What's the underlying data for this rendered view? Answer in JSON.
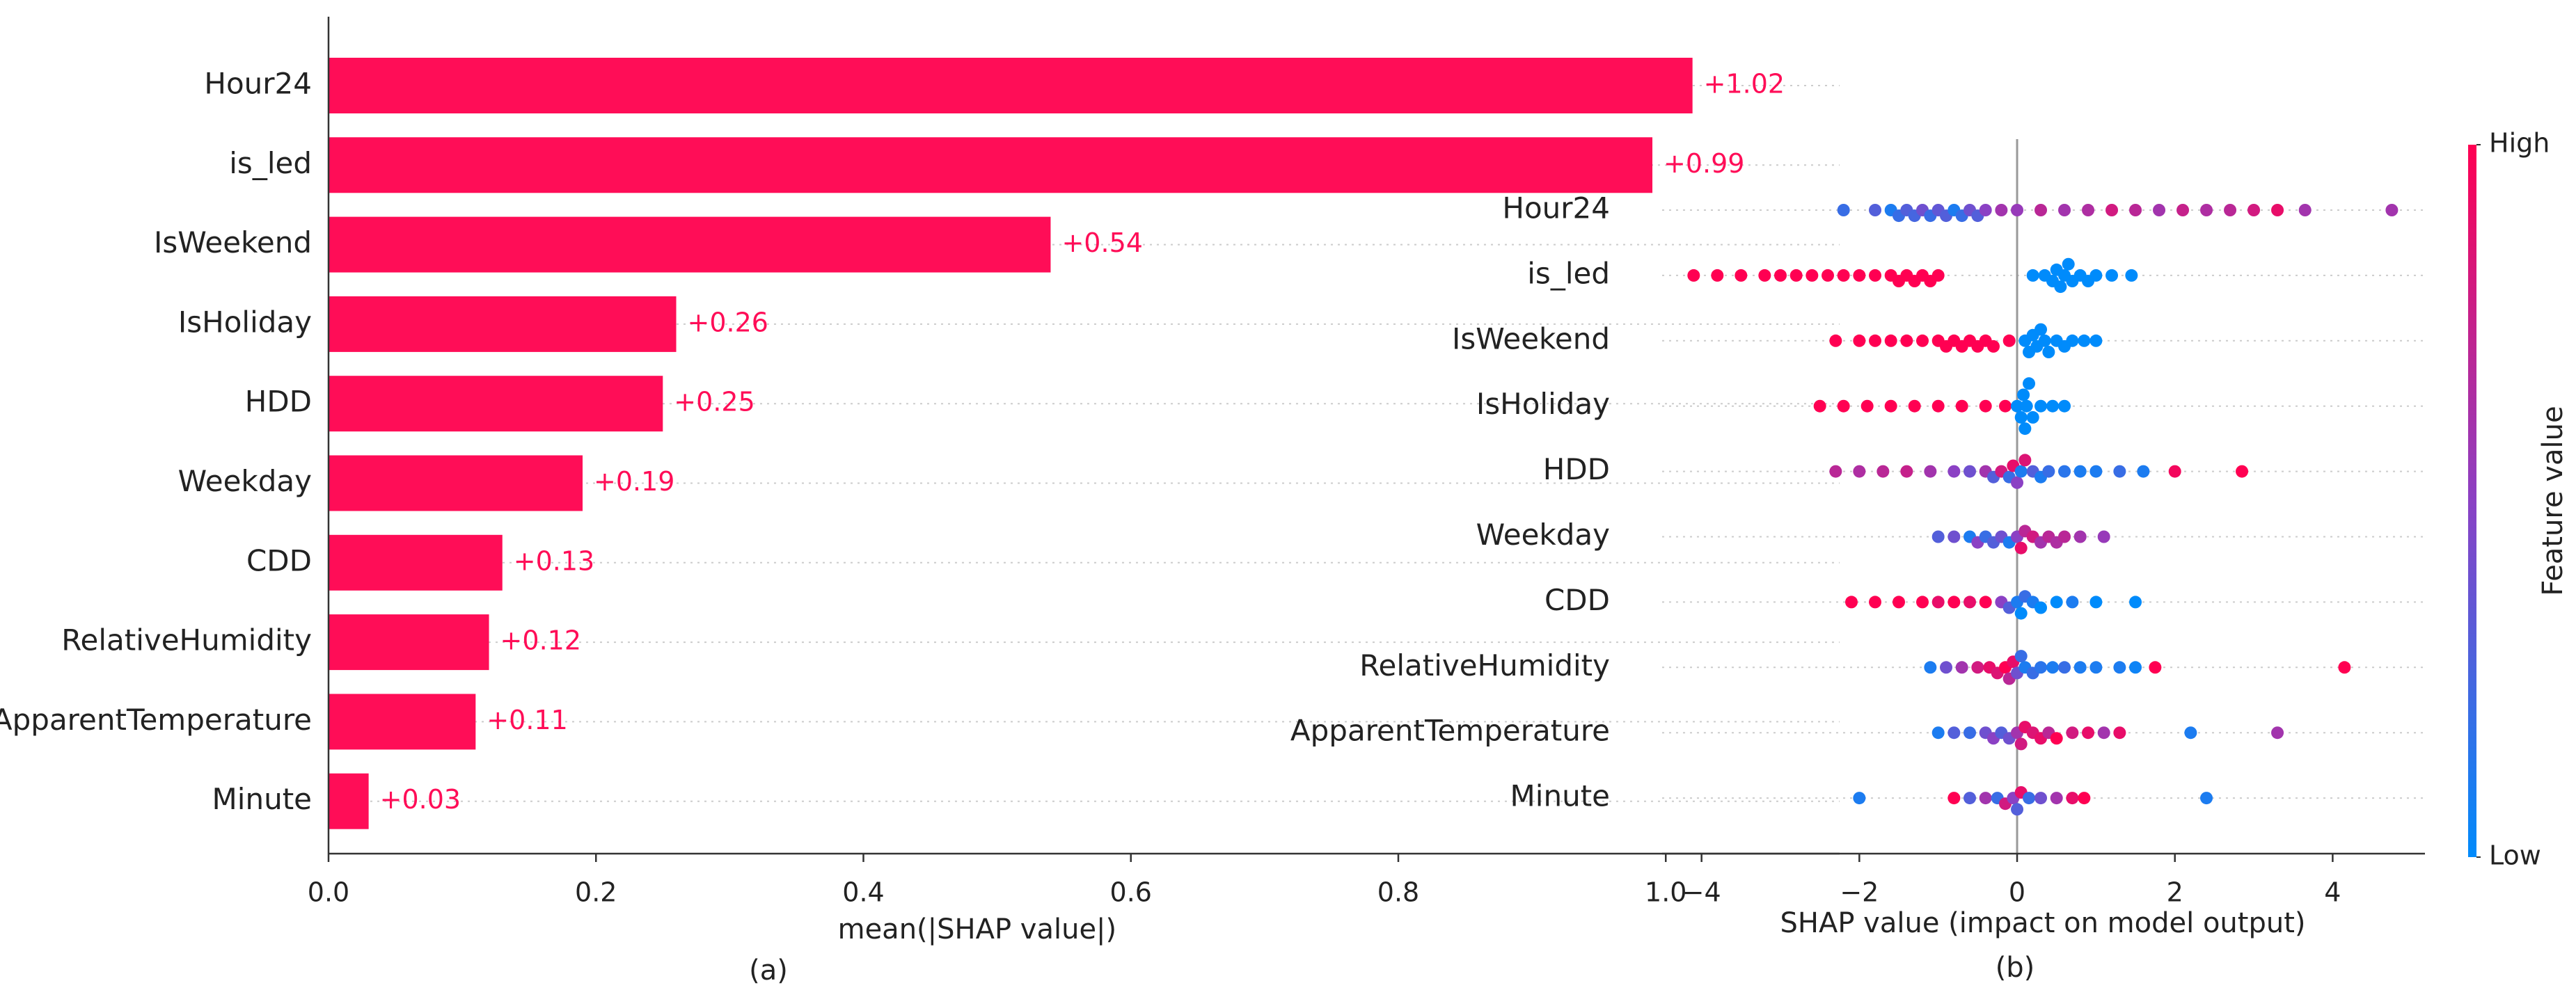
{
  "chart_data": [
    {
      "type": "bar",
      "xlabel": "mean(|SHAP value|)",
      "panel_label": "(a)",
      "categories": [
        "Hour24",
        "is_led",
        "IsWeekend",
        "IsHoliday",
        "HDD",
        "Weekday",
        "CDD",
        "RelativeHumidity",
        "ApparentTemperature",
        "Minute"
      ],
      "values": [
        1.02,
        0.99,
        0.54,
        0.26,
        0.25,
        0.19,
        0.13,
        0.12,
        0.11,
        0.03
      ],
      "value_labels": [
        "+1.02",
        "+0.99",
        "+0.54",
        "+0.26",
        "+0.25",
        "+0.19",
        "+0.13",
        "+0.12",
        "+0.11",
        "+0.03"
      ],
      "color": "#ff0d57",
      "xlim": [
        0,
        1.13
      ],
      "xticks": [
        {
          "value": 0,
          "label": "0.0"
        },
        0.2,
        0.4,
        0.6,
        0.8,
        {
          "value": 1,
          "label": "1.0"
        }
      ]
    },
    {
      "type": "beeswarm",
      "xlabel": "SHAP value (impact on model output)",
      "panel_label": "(b)",
      "colorbar_label": "Feature value",
      "colormap": [
        "#008bfb",
        "#8b41c4",
        "#ff0052"
      ],
      "colorbar_ticks": [
        {
          "value": 1,
          "label": "High"
        },
        {
          "value": 0,
          "label": "Low"
        }
      ],
      "xlim": [
        -4.5,
        5.17
      ],
      "xticks": [
        {
          "value": -4,
          "label": "−4"
        },
        {
          "value": -2,
          "label": "−2"
        },
        0,
        2,
        4
      ],
      "series": [
        {
          "name": "Hour24",
          "x": [
            -2.2,
            -1.8,
            -1.6,
            -1.5,
            -1.4,
            -1.3,
            -1.2,
            -1.1,
            -1.0,
            -0.9,
            -0.8,
            -0.7,
            -0.6,
            -0.5,
            -0.4,
            -0.2,
            0.0,
            0.3,
            0.6,
            0.9,
            1.2,
            1.5,
            1.8,
            2.1,
            2.4,
            2.7,
            3.0,
            3.3,
            3.65,
            4.75
          ],
          "feature_values": [
            0.2,
            0.3,
            0.1,
            0.2,
            0.3,
            0.25,
            0.4,
            0.2,
            0.35,
            0.3,
            0.1,
            0.2,
            0.4,
            0.3,
            0.5,
            0.6,
            0.55,
            0.7,
            0.6,
            0.65,
            0.8,
            0.7,
            0.6,
            0.75,
            0.65,
            0.7,
            0.8,
            0.9,
            0.6,
            0.6
          ]
        },
        {
          "name": "is_led",
          "x": [
            -4.1,
            -3.8,
            -3.5,
            -3.2,
            -3.0,
            -2.8,
            -2.6,
            -2.4,
            -2.2,
            -2.0,
            -1.8,
            -1.6,
            -1.5,
            -1.4,
            -1.3,
            -1.2,
            -1.1,
            -1.0,
            0.2,
            0.35,
            0.45,
            0.5,
            0.55,
            0.6,
            0.65,
            0.7,
            0.8,
            0.9,
            1.0,
            1.2,
            1.45
          ],
          "feature_values": [
            1,
            1,
            1,
            1,
            1,
            1,
            1,
            1,
            1,
            1,
            1,
            1,
            1,
            1,
            1,
            1,
            1,
            1,
            0,
            0,
            0,
            0,
            0,
            0,
            0,
            0,
            0,
            0,
            0,
            0,
            0
          ]
        },
        {
          "name": "IsWeekend",
          "x": [
            -2.3,
            -2.0,
            -1.8,
            -1.6,
            -1.4,
            -1.2,
            -1.0,
            -0.9,
            -0.8,
            -0.7,
            -0.6,
            -0.5,
            -0.4,
            -0.3,
            -0.1,
            0.1,
            0.15,
            0.2,
            0.25,
            0.3,
            0.35,
            0.4,
            0.5,
            0.6,
            0.7,
            0.85,
            1.0
          ],
          "feature_values": [
            1,
            1,
            1,
            1,
            1,
            1,
            1,
            1,
            1,
            1,
            1,
            1,
            1,
            1,
            1,
            0,
            0,
            0,
            0,
            0,
            0,
            0,
            0,
            0,
            0,
            0,
            0
          ]
        },
        {
          "name": "IsHoliday",
          "x": [
            -2.5,
            -2.2,
            -1.9,
            -1.6,
            -1.3,
            -1.0,
            -0.7,
            -0.4,
            -0.15,
            0.0,
            0.05,
            0.08,
            0.1,
            0.12,
            0.15,
            0.2,
            0.3,
            0.45,
            0.6
          ],
          "feature_values": [
            1,
            1,
            1,
            1,
            1,
            1,
            1,
            1,
            1,
            0,
            0,
            0,
            0,
            0,
            0,
            0,
            0,
            0,
            0
          ]
        },
        {
          "name": "HDD",
          "x": [
            -2.3,
            -2.0,
            -1.7,
            -1.4,
            -1.1,
            -0.8,
            -0.6,
            -0.4,
            -0.3,
            -0.2,
            -0.1,
            -0.05,
            0,
            0.05,
            0.1,
            0.2,
            0.3,
            0.4,
            0.6,
            0.8,
            1.0,
            1.3,
            1.6,
            2.0,
            2.85
          ],
          "feature_values": [
            0.7,
            0.65,
            0.7,
            0.75,
            0.6,
            0.5,
            0.4,
            0.6,
            0.3,
            0.8,
            0.2,
            0.9,
            0.5,
            0.1,
            0.85,
            0.3,
            0.1,
            0.2,
            0.15,
            0.1,
            0.1,
            0.2,
            0.1,
            0.95,
            1
          ]
        },
        {
          "name": "Weekday",
          "x": [
            -1.0,
            -0.8,
            -0.6,
            -0.5,
            -0.4,
            -0.3,
            -0.2,
            -0.1,
            0,
            0.05,
            0.1,
            0.2,
            0.3,
            0.4,
            0.5,
            0.6,
            0.8,
            1.1
          ],
          "feature_values": [
            0.3,
            0.4,
            0.1,
            0.5,
            0.2,
            0.3,
            0.4,
            0.1,
            0.5,
            0.9,
            0.7,
            0.8,
            0.6,
            0.7,
            0.65,
            0.7,
            0.6,
            0.55
          ]
        },
        {
          "name": "CDD",
          "x": [
            -2.1,
            -1.8,
            -1.5,
            -1.2,
            -1.0,
            -0.8,
            -0.6,
            -0.4,
            -0.2,
            -0.1,
            0,
            0.05,
            0.1,
            0.2,
            0.3,
            0.5,
            0.7,
            1.0,
            1.5
          ],
          "feature_values": [
            1,
            1,
            1,
            1,
            0.9,
            1,
            0.9,
            1,
            0.5,
            0.3,
            0.1,
            0,
            0.2,
            0.1,
            0,
            0,
            0.1,
            0,
            0
          ]
        },
        {
          "name": "RelativeHumidity",
          "x": [
            -1.1,
            -0.9,
            -0.7,
            -0.5,
            -0.35,
            -0.25,
            -0.15,
            -0.1,
            -0.05,
            0,
            0.05,
            0.1,
            0.2,
            0.3,
            0.45,
            0.6,
            0.8,
            1.0,
            1.3,
            1.5,
            1.75,
            4.15
          ],
          "feature_values": [
            0.1,
            0.4,
            0.6,
            0.8,
            0.9,
            0.85,
            1,
            0.7,
            0.9,
            0.4,
            0.2,
            0.1,
            0.2,
            0.15,
            0.1,
            0.2,
            0.1,
            0.1,
            0.1,
            0.05,
            1,
            1
          ]
        },
        {
          "name": "ApparentTemperature",
          "x": [
            -1.0,
            -0.8,
            -0.6,
            -0.4,
            -0.3,
            -0.2,
            -0.1,
            0,
            0.05,
            0.1,
            0.2,
            0.3,
            0.4,
            0.5,
            0.7,
            0.9,
            1.1,
            1.3,
            2.2,
            3.3
          ],
          "feature_values": [
            0.1,
            0.3,
            0.2,
            0.4,
            0.5,
            0.3,
            0.4,
            0.6,
            0.8,
            0.9,
            0.85,
            0.9,
            0.7,
            1,
            0.8,
            0.9,
            0.6,
            0.9,
            0.1,
            0.6
          ]
        },
        {
          "name": "Minute",
          "x": [
            -2.0,
            -0.8,
            -0.6,
            -0.4,
            -0.25,
            -0.15,
            -0.05,
            0,
            0.05,
            0.15,
            0.3,
            0.5,
            0.7,
            0.85,
            2.4
          ],
          "feature_values": [
            0.1,
            1,
            0.3,
            0.6,
            0.2,
            0.8,
            0.5,
            0.3,
            0.9,
            0.2,
            0.4,
            0.6,
            0.9,
            1,
            0.1
          ]
        }
      ]
    }
  ]
}
